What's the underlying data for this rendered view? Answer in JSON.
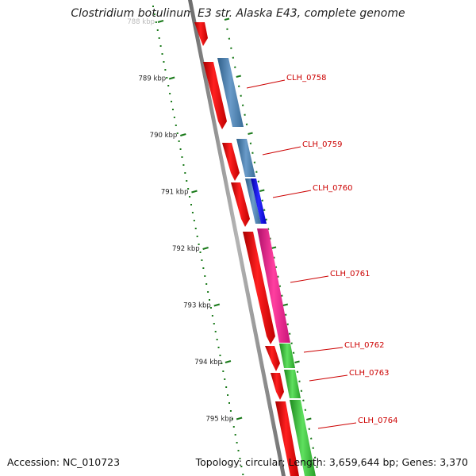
{
  "title": "Clostridium botulinum E3 str. Alaska E43, complete genome",
  "footer": {
    "accession": "Accession: NC_010723",
    "summary": "Topology: circular; Length: 3,659,644 bp; Genes: 3,370"
  },
  "scale_labels": [
    "788 kbp",
    "789 kbp",
    "790 kbp",
    "791 kbp",
    "792 kbp",
    "793 kbp",
    "794 kbp",
    "795 kbp"
  ],
  "gene_labels": [
    "CLH_0758",
    "CLH_0759",
    "CLH_0760",
    "CLH_0761",
    "CLH_0762",
    "CLH_0763",
    "CLH_0764"
  ],
  "colors": {
    "backbone": "#8a8a8a",
    "cds_feature": "#ff0000",
    "gene_feature_steelblue": "#4682b4",
    "gene_feature_blue": "#0000ff",
    "gene_feature_pink": "#ff1493",
    "gene_feature_green": "#32cd32",
    "tick": "#1a7a1a",
    "label": "#cc0000"
  }
}
